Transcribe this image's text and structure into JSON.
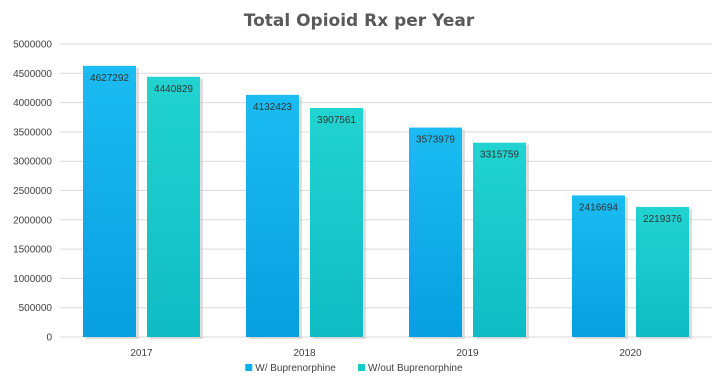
{
  "chart_data": {
    "type": "bar",
    "title": "Total Opioid Rx per Year",
    "categories": [
      "2017",
      "2018",
      "2019",
      "2020"
    ],
    "series": [
      {
        "name": "W/ Buprenorphine",
        "values": [
          4627292,
          4132423,
          3573979,
          2416694
        ],
        "color": "#0aaee8"
      },
      {
        "name": "W/out Buprenorphine",
        "values": [
          4440829,
          3907561,
          3315759,
          2219376
        ],
        "color": "#17c9c9"
      }
    ],
    "ylim": [
      0,
      5000000
    ],
    "yticks": [
      "0",
      "500000",
      "1000000",
      "1500000",
      "2000000",
      "2500000",
      "3000000",
      "3500000",
      "4000000",
      "4500000",
      "5000000"
    ],
    "grid": true,
    "legend": "bottom"
  }
}
